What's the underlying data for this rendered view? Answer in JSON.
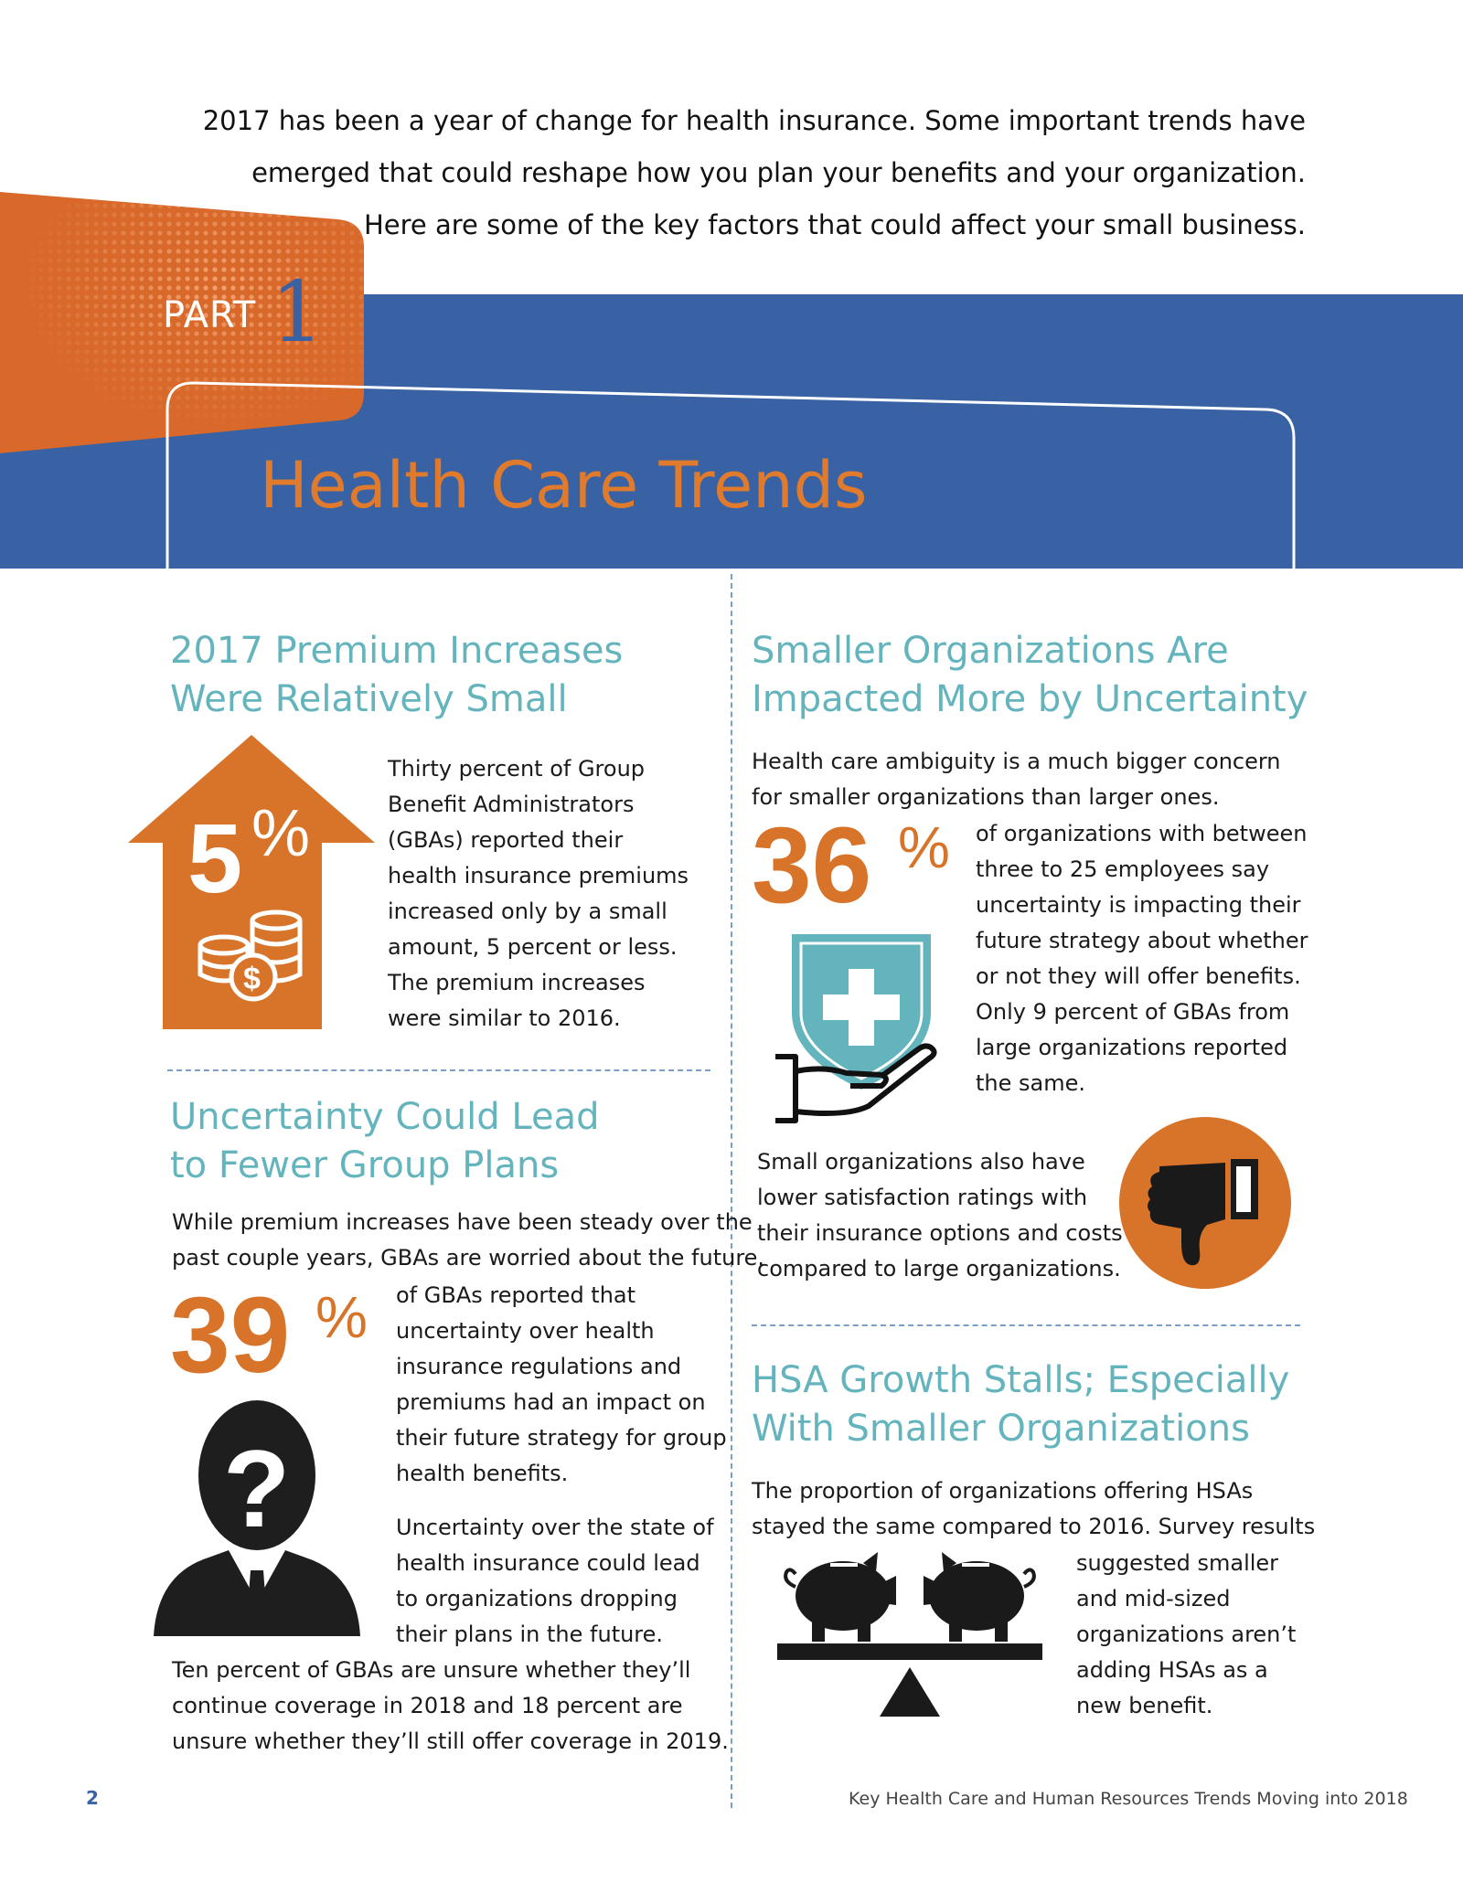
{
  "intro": {
    "line1": "2017 has been a year of change for health insurance. Some important trends have",
    "line2": "emerged that could reshape how you plan your benefits and your organization.",
    "line3": "Here are some of the key factors that could affect your small business."
  },
  "banner": {
    "part_label": "PART",
    "part_number": "1",
    "title": "Health Care Trends",
    "colors": {
      "band": "#3862a3",
      "accent": "#e07b2e",
      "heading": "#64b4bd"
    }
  },
  "section1": {
    "heading_line1": "2017 Premium Increases",
    "heading_line2": "Were Relatively Small",
    "stat_number": "5",
    "stat_symbol": "%",
    "icon": "arrow-up-coins-icon",
    "body": [
      "Thirty percent of Group",
      "Benefit Administrators",
      "(GBAs) reported their",
      "health insurance premiums",
      "increased only by a small",
      "amount, 5 percent or less.",
      "The premium increases",
      "were similar to 2016."
    ]
  },
  "section2": {
    "heading_line1": "Uncertainty Could Lead",
    "heading_line2": "to Fewer Group Plans",
    "intro_line1": "While premium increases have been steady over the",
    "intro_line2": "past couple years, GBAs are worried about the future.",
    "stat_number": "39",
    "stat_symbol": "%",
    "icon": "question-person-icon",
    "stat_text": [
      "of GBAs reported that",
      "uncertainty over health",
      "insurance regulations and",
      "premiums had an impact on",
      "their future strategy for group",
      "health benefits."
    ],
    "para2": [
      "Uncertainty over the state of",
      "health insurance could lead",
      "to organizations dropping",
      "their plans in the future."
    ],
    "para3": [
      "Ten percent of GBAs are unsure whether they’ll",
      "continue coverage in 2018 and 18 percent are",
      "unsure whether they’ll still offer coverage in 2019."
    ]
  },
  "section3": {
    "heading_line1": "Smaller Organizations Are",
    "heading_line2": "Impacted More by Uncertainty",
    "intro_line1": "Health care ambiguity is a much bigger concern",
    "intro_line2": "for smaller organizations than larger ones.",
    "stat_number": "36",
    "stat_symbol": "%",
    "icon": "shield-cross-hand-icon",
    "stat_text": [
      "of organizations with between",
      "three to 25 employees say",
      "uncertainty is impacting their",
      "future strategy about whether",
      "or not they will offer benefits.",
      "Only 9 percent of GBAs from",
      "large organizations reported",
      "the same."
    ],
    "para2": [
      "Small organizations also have",
      "lower satisfaction ratings with",
      "their insurance options and costs",
      "compared to large organizations."
    ],
    "icon2": "thumbs-down-icon"
  },
  "section4": {
    "heading_line1": "HSA Growth Stalls; Especially",
    "heading_line2": "With Smaller Organizations",
    "intro_line1": "The proportion of organizations offering HSAs",
    "intro_line2": "stayed the same compared to 2016. Survey results",
    "icon": "piggy-bank-seesaw-icon",
    "body": [
      "suggested smaller",
      "and mid-sized",
      "organizations aren’t",
      "adding HSAs as a",
      "new benefit."
    ]
  },
  "footer": {
    "page_number": "2",
    "title": "Key Health Care and Human Resources Trends Moving into 2018"
  }
}
